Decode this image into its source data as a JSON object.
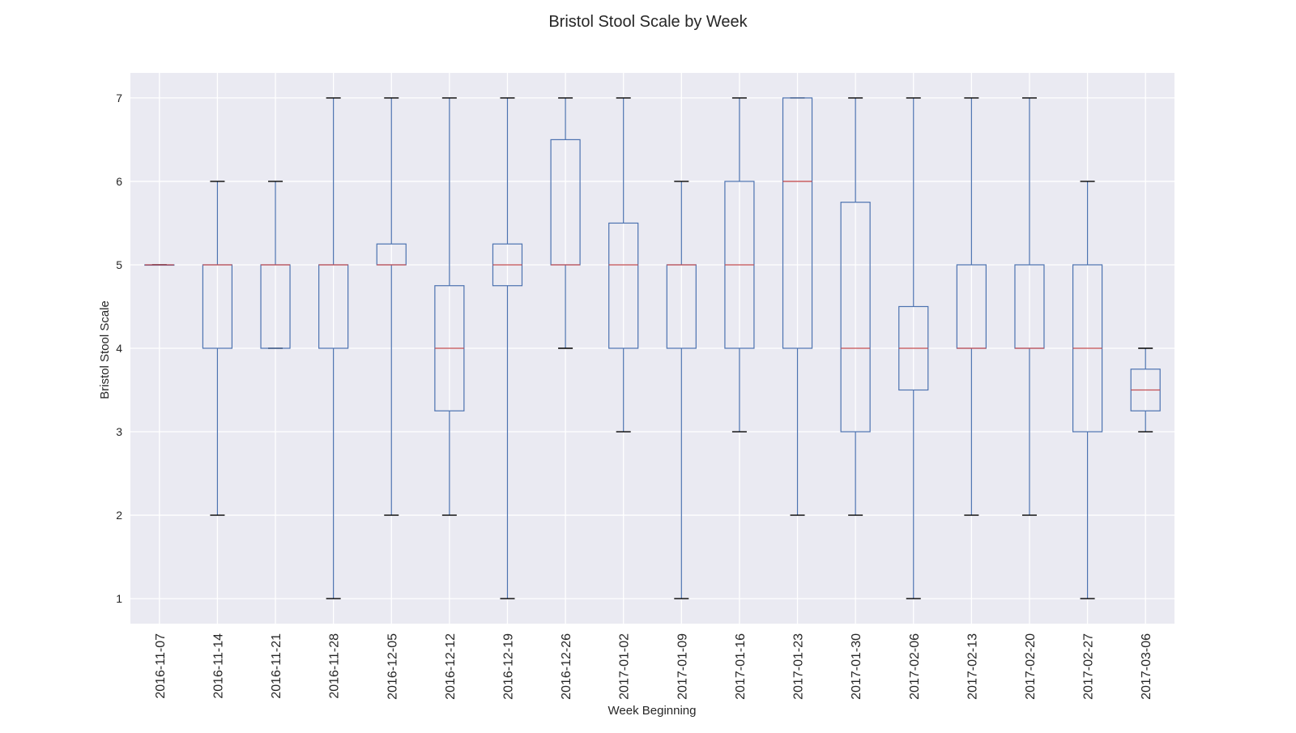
{
  "chart_data": {
    "type": "box",
    "title": "Bristol Stool Scale by Week",
    "xlabel": "Week Beginning",
    "ylabel": "Bristol Stool Scale",
    "ylim": [
      0.7,
      7.3
    ],
    "yticks": [
      1,
      2,
      3,
      4,
      5,
      6,
      7
    ],
    "grid": true,
    "categories": [
      "2016-11-07",
      "2016-11-14",
      "2016-11-21",
      "2016-11-28",
      "2016-12-05",
      "2016-12-12",
      "2016-12-19",
      "2016-12-26",
      "2017-01-02",
      "2017-01-09",
      "2017-01-16",
      "2017-01-23",
      "2017-01-30",
      "2017-02-06",
      "2017-02-13",
      "2017-02-20",
      "2017-02-27",
      "2017-03-06"
    ],
    "boxes": [
      {
        "whisker_low": 5,
        "q1": 5,
        "median": 5,
        "q3": 5,
        "whisker_high": 5
      },
      {
        "whisker_low": 2,
        "q1": 4,
        "median": 5,
        "q3": 5,
        "whisker_high": 6
      },
      {
        "whisker_low": 4,
        "q1": 4,
        "median": 5,
        "q3": 5,
        "whisker_high": 6
      },
      {
        "whisker_low": 1,
        "q1": 4,
        "median": 5,
        "q3": 5,
        "whisker_high": 7
      },
      {
        "whisker_low": 2,
        "q1": 5,
        "median": 5,
        "q3": 5.25,
        "whisker_high": 7
      },
      {
        "whisker_low": 2,
        "q1": 3.25,
        "median": 4,
        "q3": 4.75,
        "whisker_high": 7
      },
      {
        "whisker_low": 1,
        "q1": 4.75,
        "median": 5,
        "q3": 5.25,
        "whisker_high": 7
      },
      {
        "whisker_low": 4,
        "q1": 5,
        "median": 5,
        "q3": 6.5,
        "whisker_high": 7
      },
      {
        "whisker_low": 3,
        "q1": 4,
        "median": 5,
        "q3": 5.5,
        "whisker_high": 7
      },
      {
        "whisker_low": 1,
        "q1": 4,
        "median": 5,
        "q3": 5,
        "whisker_high": 6
      },
      {
        "whisker_low": 3,
        "q1": 4,
        "median": 5,
        "q3": 6,
        "whisker_high": 7
      },
      {
        "whisker_low": 2,
        "q1": 4,
        "median": 6,
        "q3": 7,
        "whisker_high": 7
      },
      {
        "whisker_low": 2,
        "q1": 3,
        "median": 4,
        "q3": 5.75,
        "whisker_high": 7
      },
      {
        "whisker_low": 1,
        "q1": 3.5,
        "median": 4,
        "q3": 4.5,
        "whisker_high": 7
      },
      {
        "whisker_low": 2,
        "q1": 4,
        "median": 4,
        "q3": 5,
        "whisker_high": 7
      },
      {
        "whisker_low": 2,
        "q1": 4,
        "median": 4,
        "q3": 5,
        "whisker_high": 7
      },
      {
        "whisker_low": 1,
        "q1": 3,
        "median": 4,
        "q3": 5,
        "whisker_high": 6
      },
      {
        "whisker_low": 3,
        "q1": 3.25,
        "median": 3.5,
        "q3": 3.75,
        "whisker_high": 4
      }
    ]
  },
  "colors": {
    "plot_background": "#eaeaf2",
    "grid": "#ffffff",
    "box": "#4c72b0",
    "median": "#c44e52",
    "cap": "#000000"
  }
}
